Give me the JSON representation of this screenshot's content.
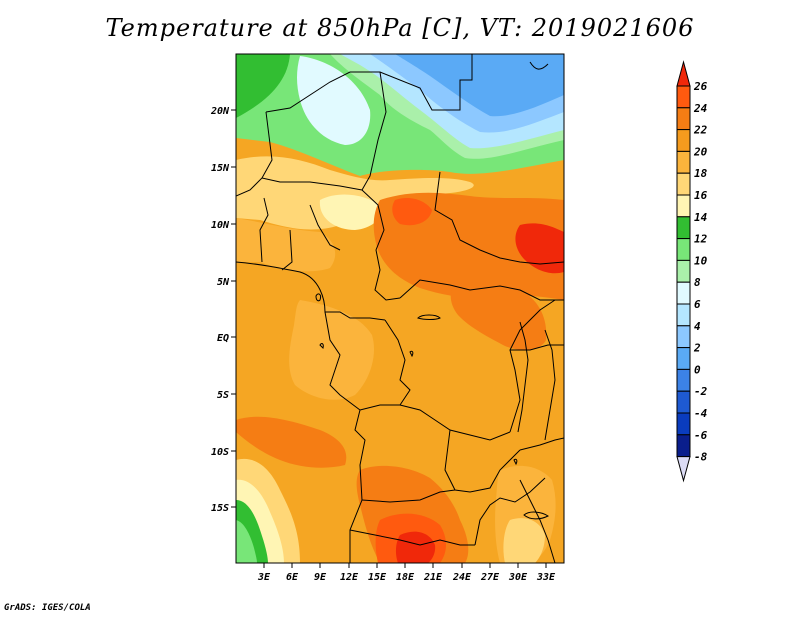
{
  "title": "Temperature at 850hPa [C], VT: 2019021606",
  "credit": "GrADS: IGES/COLA",
  "map": {
    "lat_labels": [
      "20N",
      "15N",
      "10N",
      "5N",
      "EQ",
      "5S",
      "10S",
      "15S"
    ],
    "lon_labels": [
      "3E",
      "6E",
      "9E",
      "12E",
      "15E",
      "18E",
      "21E",
      "24E",
      "27E",
      "30E",
      "33E"
    ]
  },
  "colorbar": {
    "labels": [
      "26",
      "24",
      "22",
      "20",
      "18",
      "16",
      "14",
      "12",
      "10",
      "8",
      "6",
      "4",
      "2",
      "0",
      "-2",
      "-4",
      "-6",
      "-8"
    ],
    "colors": [
      "#f0280a",
      "#ff5a0f",
      "#f57d14",
      "#f59b1e",
      "#fbb43c",
      "#ffd777",
      "#fff5b4",
      "#32be32",
      "#78e678",
      "#aaf0aa",
      "#e1faff",
      "#b4e6ff",
      "#8cc8ff",
      "#5aaaf5",
      "#3c82e6",
      "#1e5ad2",
      "#0a3cbe",
      "#0a1e8c",
      "#000064"
    ]
  },
  "colors": {
    "background": "#ffffff",
    "border": "#000000"
  }
}
